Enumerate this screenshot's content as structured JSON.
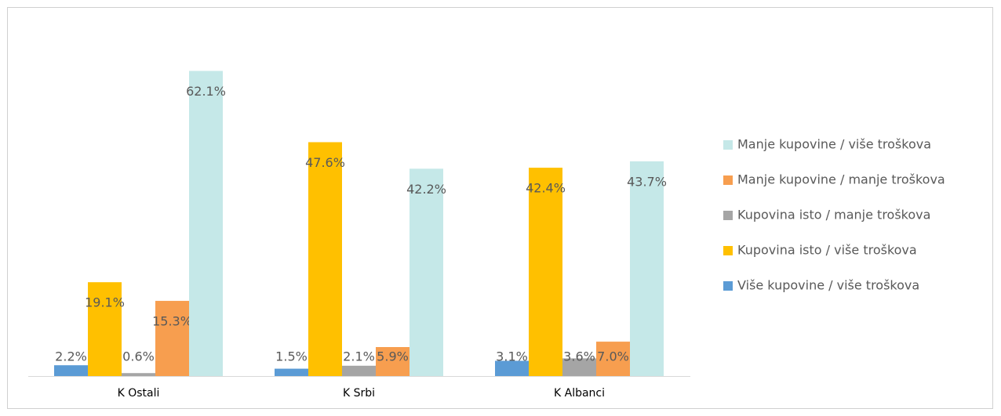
{
  "chart_data": {
    "type": "bar",
    "categories": [
      "K Ostali",
      "K Srbi",
      "K Albanci"
    ],
    "ylim": [
      0,
      70
    ],
    "series": [
      {
        "name": "Više kupovine / više troškova",
        "color": "#5b9bd5",
        "values": [
          2.2,
          1.5,
          3.1
        ],
        "value_labels": [
          "2.2%",
          "1.5%",
          "3.1%"
        ]
      },
      {
        "name": "Kupovina isto / više troškova",
        "color": "#ffc000",
        "values": [
          19.1,
          47.6,
          42.4
        ],
        "value_labels": [
          "19.1%",
          "47.6%",
          "42.4%"
        ]
      },
      {
        "name": "Kupovina isto / manje troškova",
        "color": "#a5a5a5",
        "values": [
          0.6,
          2.1,
          3.6
        ],
        "value_labels": [
          "0.6%",
          "2.1%",
          "3.6%"
        ]
      },
      {
        "name": "Manje kupovine / manje troškova",
        "color": "#f79e4f",
        "values": [
          15.3,
          5.9,
          7
        ],
        "value_labels": [
          "15.3%",
          "5.9%",
          "7.0%"
        ]
      },
      {
        "name": "Manje kupovine / više troškova",
        "color": "#c5e8e8",
        "values": [
          62.1,
          42.2,
          43.7
        ],
        "value_labels": [
          "62.1%",
          "42.2%",
          "43.7%"
        ]
      }
    ],
    "legend": "right"
  }
}
